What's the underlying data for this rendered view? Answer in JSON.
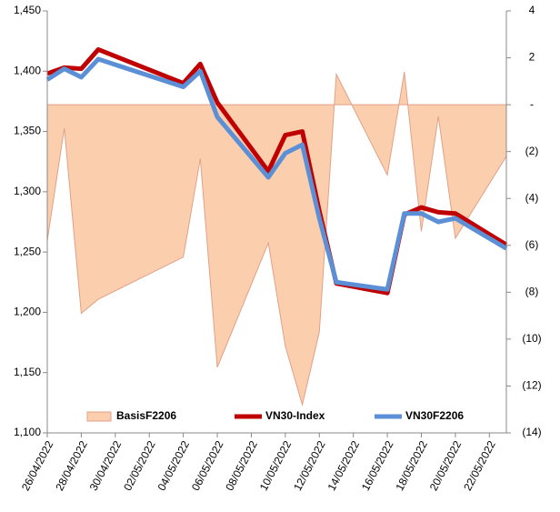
{
  "chart_data": {
    "type": "line",
    "x": [
      "26/04/2022",
      "27/04/2022",
      "28/04/2022",
      "29/04/2022",
      "04/05/2022",
      "05/05/2022",
      "06/05/2022",
      "09/05/2022",
      "10/05/2022",
      "11/05/2022",
      "12/05/2022",
      "13/05/2022",
      "16/05/2022",
      "17/05/2022",
      "18/05/2022",
      "19/05/2022",
      "20/05/2022",
      "23/05/2022"
    ],
    "xlim": [
      "26/04/2022",
      "23/05/2022"
    ],
    "xticks": [
      "26/04/2022",
      "28/04/2022",
      "30/04/2022",
      "02/05/2022",
      "04/05/2022",
      "06/05/2022",
      "08/05/2022",
      "10/05/2022",
      "12/05/2022",
      "14/05/2022",
      "16/05/2022",
      "18/05/2022",
      "20/05/2022",
      "22/05/2022"
    ],
    "ylim": [
      1100,
      1450
    ],
    "yticks": [
      {
        "value": 1100,
        "label": "1,100"
      },
      {
        "value": 1150,
        "label": "1,150"
      },
      {
        "value": 1200,
        "label": "1,200"
      },
      {
        "value": 1250,
        "label": "1,250"
      },
      {
        "value": 1300,
        "label": "1,300"
      },
      {
        "value": 1350,
        "label": "1,350"
      },
      {
        "value": 1400,
        "label": "1,400"
      },
      {
        "value": 1450,
        "label": "1,450"
      }
    ],
    "y2lim": [
      -14,
      4
    ],
    "y2ticks": [
      4,
      2,
      {
        "value": 0,
        "label": "-"
      },
      {
        "value": -2,
        "label": "(2)"
      },
      {
        "value": -4,
        "label": "(4)"
      },
      {
        "value": -6,
        "label": "(6)"
      },
      {
        "value": -8,
        "label": "(8)"
      },
      {
        "value": -10,
        "label": "(10)"
      },
      {
        "value": -12,
        "label": "(12)"
      },
      {
        "value": -14,
        "label": "(14)"
      }
    ],
    "legend": "bottom",
    "series": [
      {
        "name": "BasisF2206",
        "type": "area",
        "axis": "y2",
        "color": "#fbcfae",
        "values": [
          -5.8,
          -1.0,
          -8.9,
          -8.3,
          -6.5,
          -2.3,
          -11.2,
          -5.9,
          -10.3,
          -12.8,
          -9.7,
          1.3,
          -3.0,
          1.4,
          -5.4,
          -0.5,
          -5.7,
          -2.2
        ]
      },
      {
        "name": "VN30-Index",
        "type": "line",
        "color": "#c00000",
        "values": [
          1398,
          1403,
          1402,
          1418,
          1390,
          1406,
          1374,
          1317,
          1347,
          1350,
          1284,
          1224,
          1216,
          1281,
          1287,
          1283,
          1282,
          1256
        ]
      },
      {
        "name": "VN30F2206",
        "type": "line",
        "color": "#5b8fd6",
        "values": [
          1393,
          1402,
          1395,
          1410,
          1387,
          1400,
          1362,
          1312,
          1332,
          1339,
          1278,
          1225,
          1219,
          1282,
          1282,
          1275,
          1278,
          1253
        ]
      }
    ]
  }
}
